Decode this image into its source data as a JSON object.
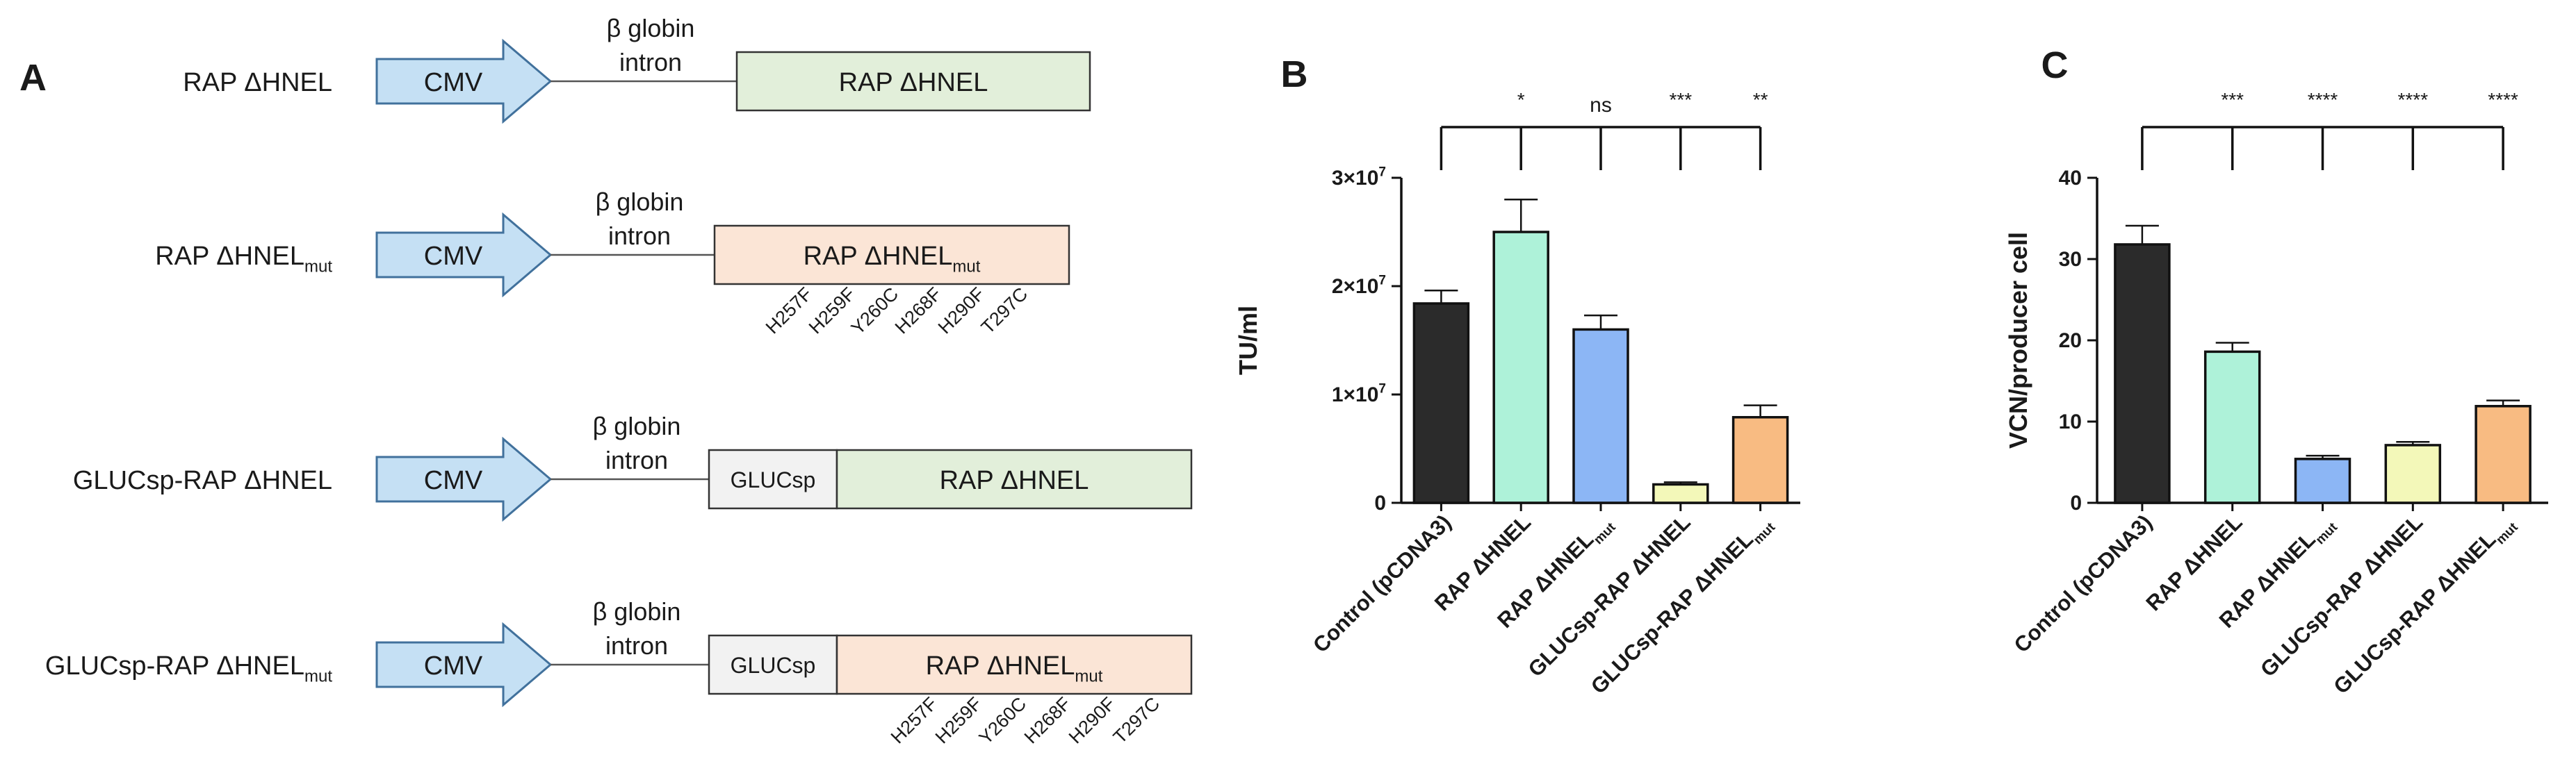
{
  "panel_a": {
    "label": "A",
    "promoter": "CMV",
    "intron_line1": "β globin",
    "intron_line2": "intron",
    "signal_peptide": "GLUCsp",
    "mut_subscript": "mut",
    "mutations": [
      "H257F",
      "H259F",
      "Y260C",
      "H268F",
      "H290F",
      "T297C"
    ],
    "constructs": [
      {
        "name": "RAP ΔHNEL",
        "name_sub": "",
        "insert": "RAP ΔHNEL",
        "insert_sub": "",
        "has_signal": false,
        "mutant": false
      },
      {
        "name": "RAP ΔHNEL",
        "name_sub": "mut",
        "insert": "RAP ΔHNEL",
        "insert_sub": "mut",
        "has_signal": false,
        "mutant": true
      },
      {
        "name": "GLUCsp-RAP ΔHNEL",
        "name_sub": "",
        "insert": "RAP ΔHNEL",
        "insert_sub": "",
        "has_signal": true,
        "mutant": false
      },
      {
        "name": "GLUCsp-RAP ΔHNEL",
        "name_sub": "mut",
        "insert": "RAP ΔHNEL",
        "insert_sub": "mut",
        "has_signal": true,
        "mutant": true
      }
    ],
    "colors": {
      "cmv_fill": "#c5e0f4",
      "cmv_stroke": "#41719c",
      "wt_fill": "#e2efda",
      "mut_fill": "#fbe5d6",
      "signal_fill": "#f2f2f2"
    }
  },
  "chart_data": [
    {
      "panel": "B",
      "type": "bar",
      "ylabel": "TU/ml",
      "ylim": [
        0,
        30000000
      ],
      "yticks": [
        0,
        10000000,
        20000000,
        30000000
      ],
      "ytick_labels": [
        {
          "base": "0",
          "exp": ""
        },
        {
          "base": "1×10",
          "exp": "7"
        },
        {
          "base": "2×10",
          "exp": "7"
        },
        {
          "base": "3×10",
          "exp": "7"
        }
      ],
      "categories": [
        {
          "base": "Control (pCDNA3)",
          "sub": ""
        },
        {
          "base": "RAP ΔHNEL",
          "sub": ""
        },
        {
          "base": "RAP  ΔHNEL",
          "sub": "mut"
        },
        {
          "base": "GLUCsp-RAP  ΔHNEL",
          "sub": ""
        },
        {
          "base": "GLUCsp-RAP  ΔHNEL",
          "sub": "mut"
        }
      ],
      "values": [
        18400000,
        25000000,
        16000000,
        1700000,
        7900000
      ],
      "errors": [
        1200000,
        3000000,
        1300000,
        200000,
        1100000
      ],
      "significance": [
        "*",
        "ns",
        "***",
        "**"
      ],
      "colors": [
        "#2b2b2b",
        "#aef2d9",
        "#8cb6f5",
        "#f3f8b9",
        "#f8bb82"
      ]
    },
    {
      "panel": "C",
      "type": "bar",
      "ylabel": "VCN/producer cell",
      "ylim": [
        0,
        40
      ],
      "yticks": [
        0,
        10,
        20,
        30,
        40
      ],
      "ytick_labels": [
        {
          "base": "0",
          "exp": ""
        },
        {
          "base": "10",
          "exp": ""
        },
        {
          "base": "20",
          "exp": ""
        },
        {
          "base": "30",
          "exp": ""
        },
        {
          "base": "40",
          "exp": ""
        }
      ],
      "categories": [
        {
          "base": "Control (pCDNA3)",
          "sub": ""
        },
        {
          "base": "RAP ΔHNEL",
          "sub": ""
        },
        {
          "base": "RAP ΔHNEL",
          "sub": "mut"
        },
        {
          "base": "GLUCsp-RAP ΔHNEL",
          "sub": ""
        },
        {
          "base": "GLUCsp-RAP ΔHNEL",
          "sub": "mut"
        }
      ],
      "values": [
        31.8,
        18.6,
        5.4,
        7.1,
        11.9
      ],
      "errors": [
        2.3,
        1.1,
        0.4,
        0.4,
        0.7
      ],
      "significance": [
        "***",
        "****",
        "****",
        "****"
      ],
      "colors": [
        "#2b2b2b",
        "#aef2d9",
        "#8cb6f5",
        "#f3f8b9",
        "#f8bb82"
      ]
    }
  ]
}
